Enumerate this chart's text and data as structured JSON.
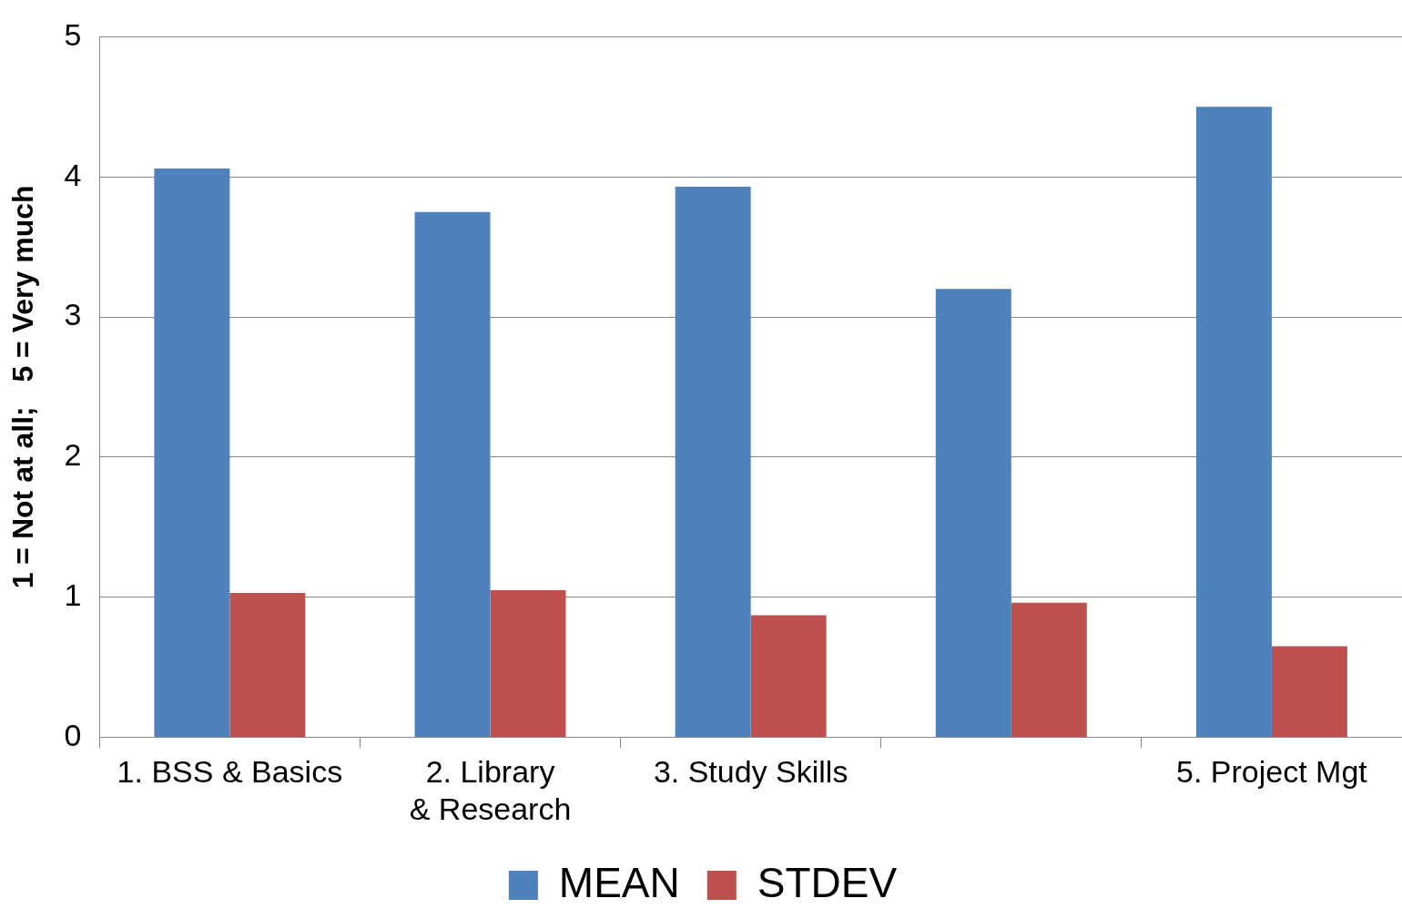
{
  "chart_data": {
    "type": "bar",
    "ylabel": "1 = Not at all;   5 = Very much",
    "categories": [
      "1. BSS & Basics",
      "2. Library & Research",
      "3. Study Skills",
      null,
      "5. Project Mgt"
    ],
    "series": [
      {
        "name": "MEAN",
        "color": "#4f81bd",
        "values": [
          4.06,
          3.75,
          3.93,
          3.2,
          4.5
        ]
      },
      {
        "name": "STDEV",
        "color": "#c0504d",
        "values": [
          1.03,
          1.05,
          0.87,
          0.96,
          0.65
        ]
      }
    ],
    "ylim": [
      0,
      5
    ],
    "yticks": [
      0,
      1,
      2,
      3,
      4,
      5
    ],
    "grid": "y",
    "legend": "bottom"
  }
}
